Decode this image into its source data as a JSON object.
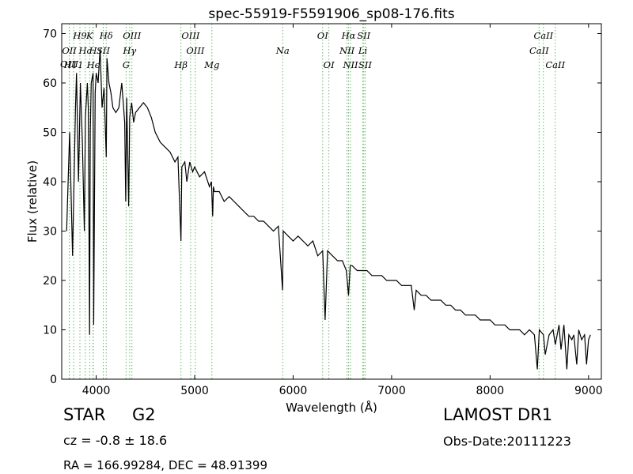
{
  "chart_data": {
    "type": "line",
    "title": "spec-55919-F5591906_sp08-176.fits",
    "xlabel": "Wavelength (Å)",
    "ylabel": "Flux (relative)",
    "xlim": [
      3650,
      9130
    ],
    "ylim": [
      0,
      72
    ],
    "xticks": [
      4000,
      5000,
      6000,
      7000,
      8000,
      9000
    ],
    "yticks": [
      0,
      10,
      20,
      30,
      40,
      50,
      60,
      70
    ],
    "grid": false,
    "line_color": "#000000",
    "marker_color": "#66bb66",
    "series": [
      {
        "x": [
          3700,
          3730,
          3760,
          3790,
          3800,
          3820,
          3840,
          3860,
          3880,
          3890,
          3910,
          3920,
          3933,
          3940,
          3950,
          3968,
          3975,
          3990,
          4000,
          4020,
          4040,
          4060,
          4080,
          4102,
          4110,
          4130,
          4150,
          4170,
          4200,
          4230,
          4260,
          4290,
          4300,
          4310,
          4330,
          4340,
          4360,
          4380,
          4400,
          4440,
          4480,
          4520,
          4560,
          4600,
          4650,
          4700,
          4750,
          4800,
          4830,
          4861,
          4870,
          4900,
          4920,
          4950,
          4980,
          5000,
          5050,
          5100,
          5150,
          5170,
          5183,
          5190,
          5200,
          5250,
          5300,
          5350,
          5400,
          5450,
          5500,
          5550,
          5600,
          5650,
          5700,
          5750,
          5800,
          5850,
          5893,
          5900,
          5950,
          6000,
          6050,
          6100,
          6150,
          6200,
          6250,
          6300,
          6325,
          6350,
          6400,
          6450,
          6500,
          6540,
          6563,
          6580,
          6600,
          6650,
          6700,
          6750,
          6800,
          6850,
          6900,
          6950,
          7000,
          7050,
          7100,
          7150,
          7200,
          7230,
          7250,
          7300,
          7350,
          7400,
          7450,
          7500,
          7550,
          7600,
          7650,
          7700,
          7750,
          7800,
          7850,
          7900,
          7950,
          8000,
          8050,
          8100,
          8150,
          8200,
          8250,
          8300,
          8350,
          8400,
          8450,
          8480,
          8500,
          8542,
          8560,
          8600,
          8640,
          8662,
          8700,
          8720,
          8750,
          8780,
          8800,
          8830,
          8850,
          8880,
          8900,
          8930,
          8960,
          8980,
          9000,
          9020
        ],
        "y": [
          30,
          50,
          25,
          55,
          62,
          40,
          60,
          48,
          30,
          53,
          60,
          55,
          9,
          50,
          60,
          62,
          11,
          58,
          62,
          60,
          67,
          55,
          59,
          45,
          65,
          60,
          58,
          55,
          54,
          55,
          60,
          52,
          36,
          57,
          35,
          53,
          56,
          52,
          54,
          55,
          56,
          55,
          53,
          50,
          48,
          47,
          46,
          44,
          45,
          28,
          43,
          44,
          40,
          44,
          42,
          43,
          41,
          42,
          39,
          40,
          33,
          39,
          38,
          38,
          36,
          37,
          36,
          35,
          34,
          33,
          33,
          32,
          32,
          31,
          30,
          31,
          18,
          30,
          29,
          28,
          29,
          28,
          27,
          28,
          25,
          26,
          12,
          26,
          25,
          24,
          24,
          22,
          17,
          23,
          23,
          22,
          22,
          22,
          21,
          21,
          21,
          20,
          20,
          20,
          19,
          19,
          19,
          14,
          18,
          17,
          17,
          16,
          16,
          16,
          15,
          15,
          14,
          14,
          13,
          13,
          13,
          12,
          12,
          12,
          11,
          11,
          11,
          10,
          10,
          10,
          9,
          10,
          9,
          2,
          10,
          9,
          5,
          9,
          10,
          7,
          11,
          6,
          11,
          2,
          9,
          8,
          9,
          3,
          10,
          8,
          9,
          3,
          8,
          9
        ]
      }
    ],
    "lines": [
      {
        "name": "H9",
        "wl": 3835,
        "row": 1,
        "style": "italic"
      },
      {
        "name": "OII",
        "wl": 3727,
        "row": 2,
        "style": "italic"
      },
      {
        "name": "OIII",
        "wl": 3727,
        "row": 4,
        "style": "italic"
      },
      {
        "name": "H11",
        "wl": 3771,
        "row": 3,
        "style": "italic"
      },
      {
        "name": "Hc",
        "wl": 3889,
        "row": 2,
        "style": "italic"
      },
      {
        "name": "K",
        "wl": 3934,
        "row": 1,
        "style": "italic"
      },
      {
        "name": "Hϵ",
        "wl": 3970,
        "row": 3,
        "style": "italic"
      },
      {
        "name": "H",
        "wl": 3968,
        "row": 2,
        "style": "italic"
      },
      {
        "name": "SII",
        "wl": 4072,
        "row": 2,
        "style": "italic"
      },
      {
        "name": "Hδ",
        "wl": 4102,
        "row": 1,
        "style": "italic"
      },
      {
        "name": "OIII",
        "wl": 4363,
        "row": 1,
        "style": "italic"
      },
      {
        "name": "Hγ",
        "wl": 4340,
        "row": 2,
        "style": "italic"
      },
      {
        "name": "G",
        "wl": 4304,
        "row": 3,
        "style": "italic"
      },
      {
        "name": "OIII",
        "wl": 4959,
        "row": 1,
        "style": "italic"
      },
      {
        "name": "OIII",
        "wl": 5007,
        "row": 2,
        "style": "italic"
      },
      {
        "name": "Hβ",
        "wl": 4861,
        "row": 3,
        "style": "italic"
      },
      {
        "name": "Mg",
        "wl": 5175,
        "row": 3,
        "style": "italic"
      },
      {
        "name": "Na",
        "wl": 5894,
        "row": 2,
        "style": "italic"
      },
      {
        "name": "OI",
        "wl": 6300,
        "row": 1,
        "style": "italic"
      },
      {
        "name": "OI",
        "wl": 6363,
        "row": 3,
        "style": "italic"
      },
      {
        "name": "Hα",
        "wl": 6563,
        "row": 1,
        "style": "italic"
      },
      {
        "name": "NII",
        "wl": 6548,
        "row": 2,
        "style": "italic"
      },
      {
        "name": "NII",
        "wl": 6583,
        "row": 3,
        "style": "italic"
      },
      {
        "name": "SII",
        "wl": 6717,
        "row": 1,
        "style": "italic"
      },
      {
        "name": "Li",
        "wl": 6708,
        "row": 2,
        "style": "italic"
      },
      {
        "name": "SII",
        "wl": 6731,
        "row": 3,
        "style": "italic"
      },
      {
        "name": "CaII",
        "wl": 8542,
        "row": 1,
        "style": "italic"
      },
      {
        "name": "CaII",
        "wl": 8498,
        "row": 2,
        "style": "italic"
      },
      {
        "name": "CaII",
        "wl": 8662,
        "row": 3,
        "style": "italic"
      }
    ]
  },
  "info": {
    "object_type": "STAR",
    "subclass": "G2",
    "cz": "cz = -0.8 ± 18.6",
    "radec": "RA = 166.99284, DEC = 48.91399",
    "survey": "LAMOST DR1",
    "obs_date": "Obs-Date:20111223"
  }
}
